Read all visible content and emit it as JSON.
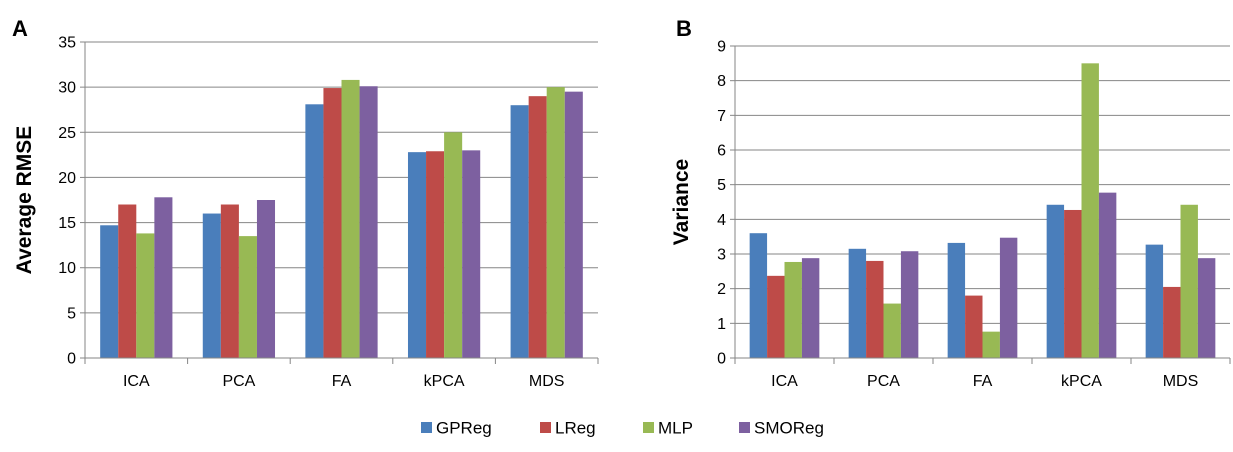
{
  "legend": [
    {
      "name": "GPReg",
      "color": "#4a7ebb"
    },
    {
      "name": "LReg",
      "color": "#be4b48"
    },
    {
      "name": "MLP",
      "color": "#98b954"
    },
    {
      "name": "SMOReg",
      "color": "#7d60a0"
    }
  ],
  "chart_data": [
    {
      "type": "bar",
      "panel": "A",
      "title": "",
      "xlabel": "",
      "ylabel": "Average RMSE",
      "ylim": [
        0,
        35
      ],
      "yticks": [
        "0",
        "5",
        "10",
        "15",
        "20",
        "25",
        "30",
        "35"
      ],
      "grid": true,
      "legend_position": "bottom-center",
      "categories": [
        "ICA",
        "PCA",
        "FA",
        "kPCA",
        "MDS"
      ],
      "series": [
        {
          "name": "GPReg",
          "color": "#4a7ebb",
          "values": [
            14.7,
            16.0,
            28.1,
            22.8,
            28.0
          ]
        },
        {
          "name": "LReg",
          "color": "#be4b48",
          "values": [
            17.0,
            17.0,
            29.9,
            22.9,
            29.0
          ]
        },
        {
          "name": "MLP",
          "color": "#98b954",
          "values": [
            13.8,
            13.5,
            30.8,
            25.0,
            30.0
          ]
        },
        {
          "name": "SMOReg",
          "color": "#7d60a0",
          "values": [
            17.8,
            17.5,
            30.1,
            23.0,
            29.5
          ]
        }
      ]
    },
    {
      "type": "bar",
      "panel": "B",
      "title": "",
      "xlabel": "",
      "ylabel": "Variance",
      "ylim": [
        0,
        9
      ],
      "yticks": [
        "0",
        "1",
        "2",
        "3",
        "4",
        "5",
        "6",
        "7",
        "8",
        "9"
      ],
      "grid": true,
      "legend_position": "bottom-center",
      "categories": [
        "ICA",
        "PCA",
        "FA",
        "kPCA",
        "MDS"
      ],
      "series": [
        {
          "name": "GPReg",
          "color": "#4a7ebb",
          "values": [
            3.6,
            3.15,
            3.32,
            4.42,
            3.27
          ]
        },
        {
          "name": "LReg",
          "color": "#be4b48",
          "values": [
            2.37,
            2.8,
            1.8,
            4.27,
            2.05
          ]
        },
        {
          "name": "MLP",
          "color": "#98b954",
          "values": [
            2.77,
            1.57,
            0.76,
            8.5,
            4.42
          ]
        },
        {
          "name": "SMOReg",
          "color": "#7d60a0",
          "values": [
            2.88,
            3.08,
            3.47,
            4.77,
            2.88
          ]
        }
      ]
    }
  ]
}
